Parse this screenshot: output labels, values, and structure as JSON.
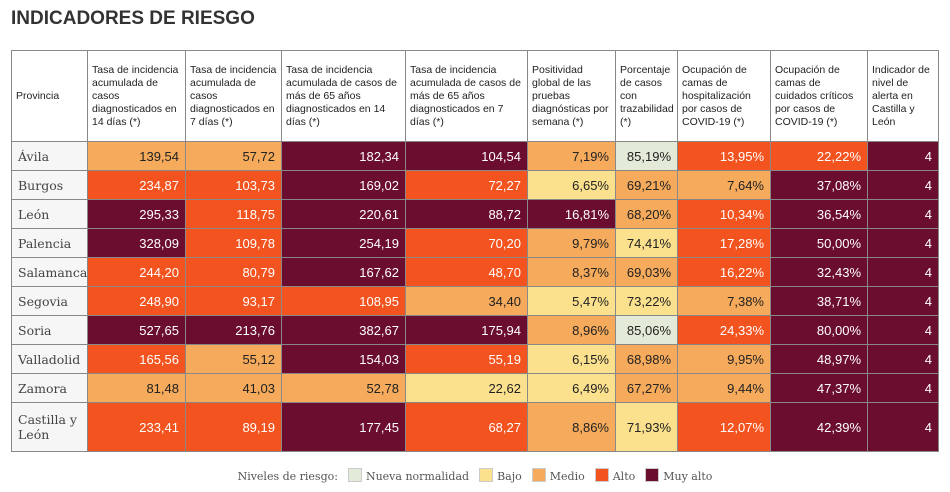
{
  "title": "INDICADORES DE RIESGO",
  "table": {
    "headers": [
      "Provincia",
      "Tasa de incidencia acumulada de casos diagnosticados en 14 días (*)",
      "Tasa de incidencia acumulada de casos diagnosticados en 7 días (*)",
      "Tasa de incidencia acumulada de casos de más de 65 años diagnosticados en 14 días (*)",
      "Tasa de incidencia acumulada de casos de más de 65 años diagnosticados en 7 días (*)",
      "Positividad global de las pruebas diagnósticas por semana (*)",
      "Porcentaje de casos con trazabilidad (*)",
      "Ocupación de camas de hospitalización por casos de COVID-19 (*)",
      "Ocupación de camas de cuidados críticos por casos de COVID-19 (*)",
      "Indicador de nivel de alerta en Castilla y León"
    ],
    "rows": [
      {
        "provincia": "Ávila",
        "cells": [
          {
            "value": "139,54",
            "level": "Medio"
          },
          {
            "value": "57,72",
            "level": "Medio"
          },
          {
            "value": "182,34",
            "level": "Muy alto"
          },
          {
            "value": "104,54",
            "level": "Muy alto"
          },
          {
            "value": "7,19%",
            "level": "Medio"
          },
          {
            "value": "85,19%",
            "level": "Nueva normalidad"
          },
          {
            "value": "13,95%",
            "level": "Alto"
          },
          {
            "value": "22,22%",
            "level": "Alto"
          },
          {
            "value": "4",
            "level": "Muy alto"
          }
        ]
      },
      {
        "provincia": "Burgos",
        "cells": [
          {
            "value": "234,87",
            "level": "Alto"
          },
          {
            "value": "103,73",
            "level": "Alto"
          },
          {
            "value": "169,02",
            "level": "Muy alto"
          },
          {
            "value": "72,27",
            "level": "Alto"
          },
          {
            "value": "6,65%",
            "level": "Bajo"
          },
          {
            "value": "69,21%",
            "level": "Medio"
          },
          {
            "value": "7,64%",
            "level": "Medio"
          },
          {
            "value": "37,08%",
            "level": "Muy alto"
          },
          {
            "value": "4",
            "level": "Muy alto"
          }
        ]
      },
      {
        "provincia": "León",
        "cells": [
          {
            "value": "295,33",
            "level": "Muy alto"
          },
          {
            "value": "118,75",
            "level": "Alto"
          },
          {
            "value": "220,61",
            "level": "Muy alto"
          },
          {
            "value": "88,72",
            "level": "Muy alto"
          },
          {
            "value": "16,81%",
            "level": "Muy alto"
          },
          {
            "value": "68,20%",
            "level": "Medio"
          },
          {
            "value": "10,34%",
            "level": "Alto"
          },
          {
            "value": "36,54%",
            "level": "Muy alto"
          },
          {
            "value": "4",
            "level": "Muy alto"
          }
        ]
      },
      {
        "provincia": "Palencia",
        "cells": [
          {
            "value": "328,09",
            "level": "Muy alto"
          },
          {
            "value": "109,78",
            "level": "Alto"
          },
          {
            "value": "254,19",
            "level": "Muy alto"
          },
          {
            "value": "70,20",
            "level": "Alto"
          },
          {
            "value": "9,79%",
            "level": "Medio"
          },
          {
            "value": "74,41%",
            "level": "Bajo"
          },
          {
            "value": "17,28%",
            "level": "Alto"
          },
          {
            "value": "50,00%",
            "level": "Muy alto"
          },
          {
            "value": "4",
            "level": "Muy alto"
          }
        ]
      },
      {
        "provincia": "Salamanca",
        "cells": [
          {
            "value": "244,20",
            "level": "Alto"
          },
          {
            "value": "80,79",
            "level": "Alto"
          },
          {
            "value": "167,62",
            "level": "Muy alto"
          },
          {
            "value": "48,70",
            "level": "Alto"
          },
          {
            "value": "8,37%",
            "level": "Medio"
          },
          {
            "value": "69,03%",
            "level": "Medio"
          },
          {
            "value": "16,22%",
            "level": "Alto"
          },
          {
            "value": "32,43%",
            "level": "Muy alto"
          },
          {
            "value": "4",
            "level": "Muy alto"
          }
        ]
      },
      {
        "provincia": "Segovia",
        "cells": [
          {
            "value": "248,90",
            "level": "Alto"
          },
          {
            "value": "93,17",
            "level": "Alto"
          },
          {
            "value": "108,95",
            "level": "Alto"
          },
          {
            "value": "34,40",
            "level": "Medio"
          },
          {
            "value": "5,47%",
            "level": "Bajo"
          },
          {
            "value": "73,22%",
            "level": "Bajo"
          },
          {
            "value": "7,38%",
            "level": "Medio"
          },
          {
            "value": "38,71%",
            "level": "Muy alto"
          },
          {
            "value": "4",
            "level": "Muy alto"
          }
        ]
      },
      {
        "provincia": "Soria",
        "cells": [
          {
            "value": "527,65",
            "level": "Muy alto"
          },
          {
            "value": "213,76",
            "level": "Muy alto"
          },
          {
            "value": "382,67",
            "level": "Muy alto"
          },
          {
            "value": "175,94",
            "level": "Muy alto"
          },
          {
            "value": "8,96%",
            "level": "Medio"
          },
          {
            "value": "85,06%",
            "level": "Nueva normalidad"
          },
          {
            "value": "24,33%",
            "level": "Alto"
          },
          {
            "value": "80,00%",
            "level": "Muy alto"
          },
          {
            "value": "4",
            "level": "Muy alto"
          }
        ]
      },
      {
        "provincia": "Valladolid",
        "cells": [
          {
            "value": "165,56",
            "level": "Alto"
          },
          {
            "value": "55,12",
            "level": "Medio"
          },
          {
            "value": "154,03",
            "level": "Muy alto"
          },
          {
            "value": "55,19",
            "level": "Alto"
          },
          {
            "value": "6,15%",
            "level": "Bajo"
          },
          {
            "value": "68,98%",
            "level": "Medio"
          },
          {
            "value": "9,95%",
            "level": "Medio"
          },
          {
            "value": "48,97%",
            "level": "Muy alto"
          },
          {
            "value": "4",
            "level": "Muy alto"
          }
        ]
      },
      {
        "provincia": "Zamora",
        "cells": [
          {
            "value": "81,48",
            "level": "Medio"
          },
          {
            "value": "41,03",
            "level": "Medio"
          },
          {
            "value": "52,78",
            "level": "Medio"
          },
          {
            "value": "22,62",
            "level": "Bajo"
          },
          {
            "value": "6,49%",
            "level": "Bajo"
          },
          {
            "value": "67,27%",
            "level": "Medio"
          },
          {
            "value": "9,44%",
            "level": "Medio"
          },
          {
            "value": "47,37%",
            "level": "Muy alto"
          },
          {
            "value": "4",
            "level": "Muy alto"
          }
        ]
      },
      {
        "provincia": "Castilla y León",
        "cells": [
          {
            "value": "233,41",
            "level": "Alto"
          },
          {
            "value": "89,19",
            "level": "Alto"
          },
          {
            "value": "177,45",
            "level": "Muy alto"
          },
          {
            "value": "68,27",
            "level": "Alto"
          },
          {
            "value": "8,86%",
            "level": "Medio"
          },
          {
            "value": "71,93%",
            "level": "Bajo"
          },
          {
            "value": "12,07%",
            "level": "Alto"
          },
          {
            "value": "42,39%",
            "level": "Muy alto"
          },
          {
            "value": "4",
            "level": "Muy alto"
          }
        ]
      }
    ]
  },
  "legend": {
    "title": "Niveles de riesgo:",
    "items": [
      {
        "name": "Nueva normalidad",
        "color": "#e3ead8"
      },
      {
        "name": "Bajo",
        "color": "#fbe18e"
      },
      {
        "name": "Medio",
        "color": "#f5aa5c"
      },
      {
        "name": "Alto",
        "color": "#f2531f"
      },
      {
        "name": "Muy alto",
        "color": "#6b0d2f"
      }
    ]
  }
}
